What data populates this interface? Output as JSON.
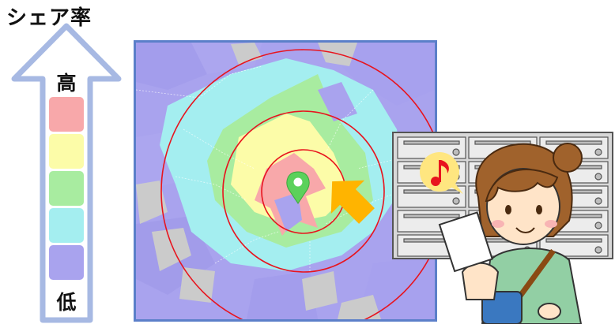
{
  "title": "シェア率",
  "legend": {
    "high_label": "高",
    "low_label": "低",
    "levels": [
      {
        "level": "高",
        "color": "#f8a8aa"
      },
      {
        "level": "",
        "color": "#fcfca8"
      },
      {
        "level": "",
        "color": "#a8eca0"
      },
      {
        "level": "",
        "color": "#a4eef0"
      },
      {
        "level": "低",
        "color": "#a9a3ee"
      }
    ]
  },
  "map": {
    "range_rings": 3,
    "ring_color": "#e8141e",
    "center_pin_color": "#5bd15b",
    "arrow_color": "#ffb400",
    "no_data_color": "#cccccc"
  },
  "illustration": {
    "subject": "woman-delivering-flyer-to-mailboxes",
    "speech_bubble_icon": "music-note-icon"
  }
}
